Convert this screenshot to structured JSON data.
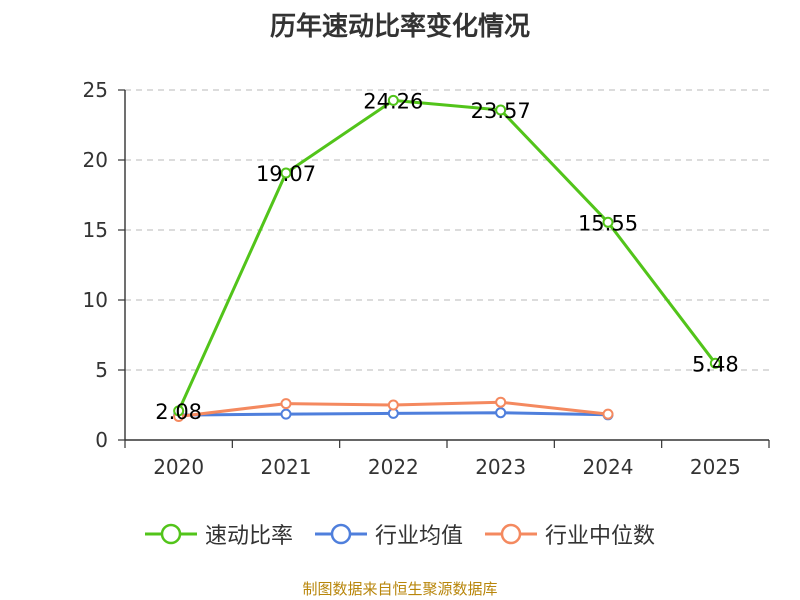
{
  "chart_data": {
    "type": "line",
    "title": "历年速动比率变化情况",
    "categories": [
      "2020",
      "2021",
      "2022",
      "2023",
      "2024",
      "2025"
    ],
    "ylim": [
      0,
      25
    ],
    "yticks": [
      0,
      5,
      10,
      15,
      20,
      25
    ],
    "grid": true,
    "legend_position": "bottom",
    "series": [
      {
        "name": "速动比率",
        "color": "#52c41a",
        "values": [
          2.08,
          19.07,
          24.26,
          23.57,
          15.55,
          5.48
        ],
        "labels": [
          "2.08",
          "19.07",
          "24.26",
          "23.57",
          "15.55",
          "5.48"
        ],
        "show_labels": true
      },
      {
        "name": "行业均值",
        "color": "#4f7fdc",
        "values": [
          1.78,
          1.85,
          1.9,
          1.95,
          1.8,
          null
        ],
        "show_labels": false
      },
      {
        "name": "行业中位数",
        "color": "#f4895f",
        "values": [
          1.68,
          2.6,
          2.5,
          2.7,
          1.85,
          null
        ],
        "show_labels": false
      }
    ]
  },
  "footer": "制图数据来自恒生聚源数据库"
}
